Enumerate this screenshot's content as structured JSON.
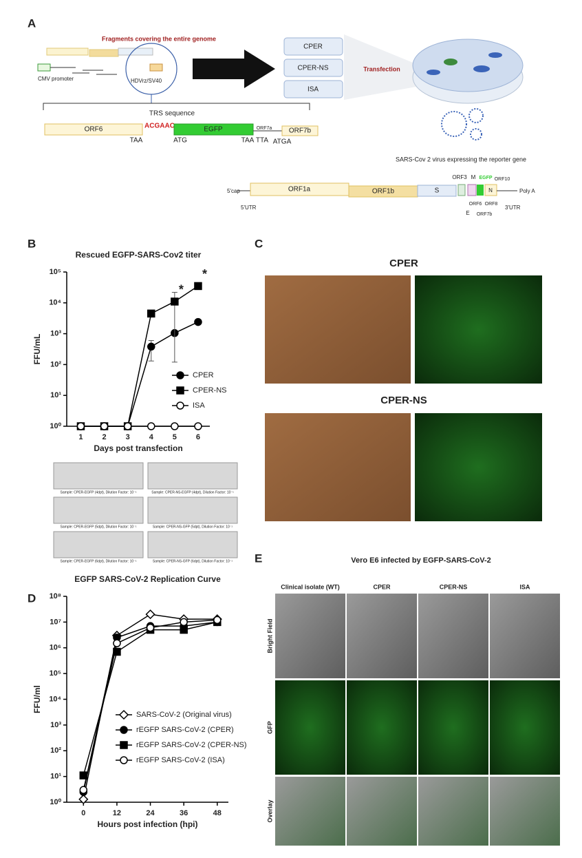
{
  "panel_a": {
    "label": "A",
    "fragments_title": "Fragments covering the entire genome",
    "cmv": "CMV promoter",
    "hdv": "HDVrz/SV40",
    "methods": [
      "CPER",
      "CPER-NS",
      "ISA"
    ],
    "transfection": "Transfection",
    "trs": "TRS sequence",
    "construct": {
      "orf6": "ORF6",
      "acgaac": "ACGAAC",
      "egfp": "EGFP",
      "orf7a": "ORF7a",
      "orf7b": "ORF7b",
      "taa1": "TAA",
      "atg": "ATG",
      "taa2": "TAA",
      "tta": "TTA",
      "atga": "ATGA"
    },
    "virus_caption": "SARS-Cov 2 virus expressing the reporter gene",
    "genome": {
      "cap": "5'cap",
      "utr5": "5'UTR",
      "orf1a": "ORF1a",
      "orf1b": "ORF1b",
      "s": "S",
      "orf3": "ORF3",
      "m": "M",
      "egfp": "EGFP",
      "orf10": "ORF10",
      "n": "N",
      "polya": "Poly A",
      "orf6": "ORF6",
      "orf8": "ORF8",
      "e": "E",
      "orf7b": "ORF7b",
      "utr3": "3'UTR"
    }
  },
  "panel_b": {
    "label": "B",
    "annotations": [
      "*",
      "*"
    ],
    "plaque_captions": [
      "Sample: CPER-EGFP (4dpt), Dilution Factor: 10⁻¹",
      "Sample: CPER-NS-EGFP (4dpt), Dilution Factor: 10⁻¹",
      "Sample: CPER-EGFP (5dpt), Dilution Factor: 10⁻¹",
      "Sample: CPER-NS-GFP (5dpt), Dilution Factor: 10⁻¹",
      "Sample: CPER-EGFP (6dpt), Dilution Factor: 10⁻¹",
      "Sample: CPER-NS-GFP (6dpt), Dilution Factor: 10⁻¹"
    ]
  },
  "panel_c": {
    "label": "C",
    "rows": [
      "CPER",
      "CPER-NS"
    ]
  },
  "panel_d": {
    "label": "D"
  },
  "panel_e": {
    "label": "E",
    "title": "Vero E6 infected by EGFP-SARS-CoV-2",
    "columns": [
      "Clinical isolate (WT)",
      "CPER",
      "CPER-NS",
      "ISA"
    ],
    "rows": [
      "Bright Field",
      "GFP",
      "Overlay"
    ]
  },
  "chart_data": [
    {
      "type": "line",
      "title": "Rescued EGFP-SARS-Cov2 titer",
      "x_label": "Days post transfection",
      "y_label": "FFU/mL",
      "log_y": true,
      "x": [
        1,
        2,
        3,
        4,
        5,
        6
      ],
      "xlim": [
        0.4,
        6.5
      ],
      "xticks": [
        1,
        2,
        3,
        4,
        5,
        6
      ],
      "ylim": [
        1,
        100000
      ],
      "yticks": [
        {
          "value": 1,
          "label": "10⁰"
        },
        {
          "value": 10,
          "label": "10¹"
        },
        {
          "value": 100,
          "label": "10²"
        },
        {
          "value": 1000,
          "label": "10³"
        },
        {
          "value": 10000,
          "label": "10⁴"
        },
        {
          "value": 100000,
          "label": "10⁵"
        }
      ],
      "series": [
        {
          "name": "CPER",
          "color": "#000000",
          "marker": "circle",
          "filled": true,
          "values": [
            1,
            1,
            1,
            380,
            1050,
            2400
          ],
          "yerr_low": [
            null,
            null,
            null,
            130,
            null,
            null
          ],
          "yerr_high": [
            null,
            null,
            null,
            600,
            null,
            null
          ]
        },
        {
          "name": "CPER-NS",
          "color": "#000000",
          "marker": "square",
          "filled": true,
          "values": [
            1,
            1,
            1,
            4500,
            11000,
            35000
          ],
          "yerr_low": [
            null,
            null,
            null,
            3500,
            120,
            null
          ],
          "yerr_high": [
            null,
            null,
            null,
            5800,
            22000,
            null
          ]
        },
        {
          "name": "ISA",
          "color": "#000000",
          "marker": "circle",
          "filled": false,
          "values": [
            1,
            1,
            1,
            1,
            1,
            1
          ]
        }
      ]
    },
    {
      "type": "line",
      "title": "EGFP SARS-CoV-2 Replication Curve",
      "x_label": "Hours post infection (hpi)",
      "y_label": "FFU/ml",
      "log_y": true,
      "x": [
        0,
        12,
        24,
        36,
        48
      ],
      "xlim": [
        -6,
        52
      ],
      "xticks": [
        0,
        12,
        24,
        36,
        48
      ],
      "ylim": [
        1,
        100000000
      ],
      "yticks": [
        {
          "value": 1,
          "label": "10⁰"
        },
        {
          "value": 10,
          "label": "10¹"
        },
        {
          "value": 100,
          "label": "10²"
        },
        {
          "value": 1000,
          "label": "10³"
        },
        {
          "value": 10000,
          "label": "10⁴"
        },
        {
          "value": 100000,
          "label": "10⁵"
        },
        {
          "value": 1000000,
          "label": "10⁶"
        },
        {
          "value": 10000000,
          "label": "10⁷"
        },
        {
          "value": 100000000,
          "label": "10⁸"
        }
      ],
      "series": [
        {
          "name": "SARS-CoV-2 (Original virus)",
          "color": "#000000",
          "marker": "diamond",
          "filled": false,
          "values": [
            1.3,
            3000000,
            20000000,
            13000000,
            13000000
          ]
        },
        {
          "name": "rEGFP SARS-CoV-2 (CPER)",
          "color": "#000000",
          "marker": "circle",
          "filled": true,
          "values": [
            2.5,
            2500000,
            7000000,
            7000000,
            10000000
          ]
        },
        {
          "name": "rEGFP SARS-CoV-2 (CPER-NS)",
          "color": "#000000",
          "marker": "square",
          "filled": true,
          "values": [
            11,
            700000,
            5000000,
            5000000,
            10000000
          ]
        },
        {
          "name": "rEGFP SARS-CoV-2 (ISA)",
          "color": "#000000",
          "marker": "circle",
          "filled": false,
          "values": [
            3,
            1500000,
            6000000,
            10000000,
            12000000
          ]
        }
      ]
    }
  ]
}
